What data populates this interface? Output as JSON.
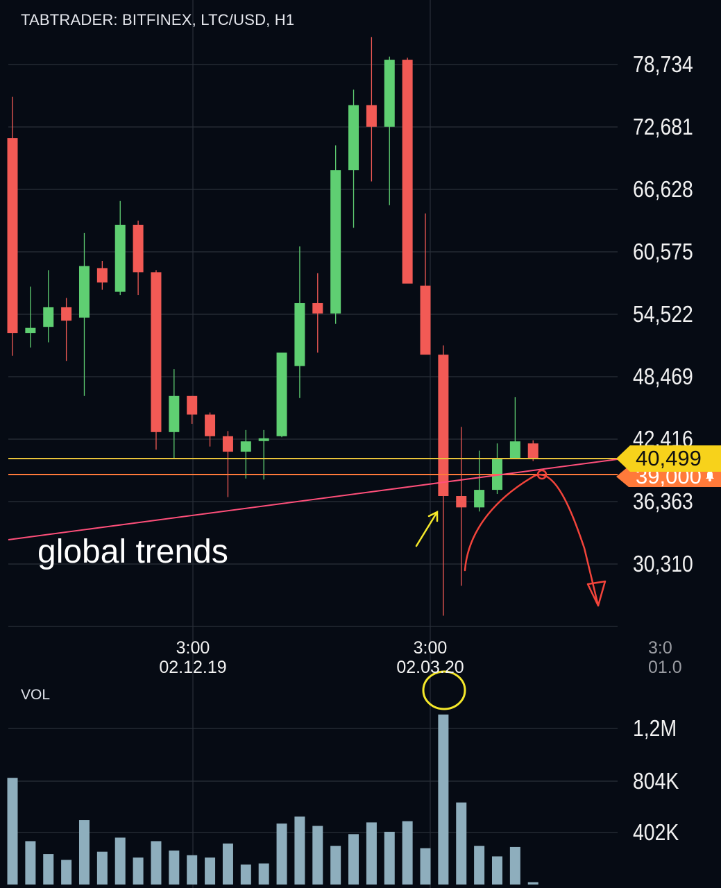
{
  "header": {
    "title": "TABTRADER: BITFINEX, LTC/USD, H1"
  },
  "annotation": {
    "text": "global trends"
  },
  "price_axis": {
    "ticks": [
      "78,734",
      "72,681",
      "66,628",
      "60,575",
      "54,522",
      "48,469",
      "42,416",
      "36,363",
      "30,310"
    ]
  },
  "current_price": {
    "label": "40,499",
    "color": "#f7d21b"
  },
  "alert": {
    "label": "39,000",
    "color": "#ff7a3a",
    "icon": "bell-icon"
  },
  "time_axis": {
    "ticks": [
      {
        "time": "3:00",
        "date": "02.12.19"
      },
      {
        "time": "3:00",
        "date": "02.03.20"
      },
      {
        "time": "3:0",
        "date": "01.0"
      }
    ]
  },
  "volume": {
    "label": "VOL",
    "ticks": [
      "1,2M",
      "804K",
      "402K"
    ],
    "bar_color": "#8eaebd"
  },
  "colors": {
    "background": "#060b14",
    "grid": "#2a3039",
    "up": "#5fcf72",
    "down": "#f25a55",
    "trendline": "#ff4f7a",
    "drawing": "#f3443b",
    "highlight": "#f5e82a"
  },
  "chart_data": {
    "type": "candlestick",
    "title": "TABTRADER: BITFINEX, LTC/USD, H1",
    "ylim": [
      24000,
      84000
    ],
    "candles": [
      {
        "o": 71.6,
        "h": 75.6,
        "l": 50.5,
        "c": 52.7
      },
      {
        "o": 52.7,
        "h": 57.2,
        "l": 51.3,
        "c": 53.2
      },
      {
        "o": 53.3,
        "h": 58.8,
        "l": 51.8,
        "c": 55.2
      },
      {
        "o": 55.2,
        "h": 56.1,
        "l": 50.0,
        "c": 53.9
      },
      {
        "o": 54.2,
        "h": 62.4,
        "l": 46.6,
        "c": 59.2
      },
      {
        "o": 59.0,
        "h": 59.7,
        "l": 56.9,
        "c": 57.6
      },
      {
        "o": 56.7,
        "h": 65.5,
        "l": 56.4,
        "c": 63.2
      },
      {
        "o": 63.2,
        "h": 63.6,
        "l": 56.4,
        "c": 58.6
      },
      {
        "o": 58.6,
        "h": 58.8,
        "l": 41.4,
        "c": 43.1
      },
      {
        "o": 43.1,
        "h": 49.2,
        "l": 40.6,
        "c": 46.6
      },
      {
        "o": 46.6,
        "h": 46.6,
        "l": 43.9,
        "c": 44.8
      },
      {
        "o": 44.8,
        "h": 45.0,
        "l": 41.7,
        "c": 42.7
      },
      {
        "o": 42.7,
        "h": 43.2,
        "l": 36.8,
        "c": 41.2
      },
      {
        "o": 41.2,
        "h": 43.3,
        "l": 38.6,
        "c": 42.2
      },
      {
        "o": 42.4,
        "h": 43.3,
        "l": 38.5,
        "c": 42.5
      },
      {
        "o": 42.7,
        "h": 50.1,
        "l": 42.6,
        "c": 50.8
      },
      {
        "o": 49.5,
        "h": 61.1,
        "l": 46.4,
        "c": 55.6
      },
      {
        "o": 55.6,
        "h": 58.5,
        "l": 50.8,
        "c": 54.6
      },
      {
        "o": 54.6,
        "h": 70.9,
        "l": 53.6,
        "c": 68.5
      },
      {
        "o": 68.5,
        "h": 76.3,
        "l": 62.9,
        "c": 74.8
      },
      {
        "o": 74.8,
        "h": 81.4,
        "l": 67.4,
        "c": 72.7
      },
      {
        "o": 72.7,
        "h": 79.5,
        "l": 65.1,
        "c": 79.2
      },
      {
        "o": 79.2,
        "h": 79.4,
        "l": 62.8,
        "c": 57.5
      },
      {
        "o": 57.3,
        "h": 64.3,
        "l": 52.2,
        "c": 50.6
      },
      {
        "o": 50.6,
        "h": 51.5,
        "l": 25.3,
        "c": 36.9
      },
      {
        "o": 36.9,
        "h": 43.6,
        "l": 28.2,
        "c": 35.8
      },
      {
        "o": 35.8,
        "h": 41.3,
        "l": 35.4,
        "c": 37.5
      },
      {
        "o": 37.5,
        "h": 42.0,
        "l": 37.1,
        "c": 40.6
      },
      {
        "o": 40.6,
        "h": 46.5,
        "l": 40.5,
        "c": 42.2
      },
      {
        "o": 42.0,
        "h": 42.3,
        "l": 40.3,
        "c": 40.5
      }
    ],
    "price_unit": "thousands",
    "volumes": [
      0.91,
      0.37,
      0.26,
      0.21,
      0.55,
      0.28,
      0.4,
      0.23,
      0.37,
      0.29,
      0.25,
      0.23,
      0.35,
      0.17,
      0.18,
      0.52,
      0.58,
      0.5,
      0.33,
      0.43,
      0.53,
      0.45,
      0.54,
      0.31,
      1.45,
      0.7,
      0.33,
      0.24,
      0.32,
      0.02
    ],
    "volume_unit": "M",
    "horizontal_levels": [
      40499,
      39000
    ]
  }
}
